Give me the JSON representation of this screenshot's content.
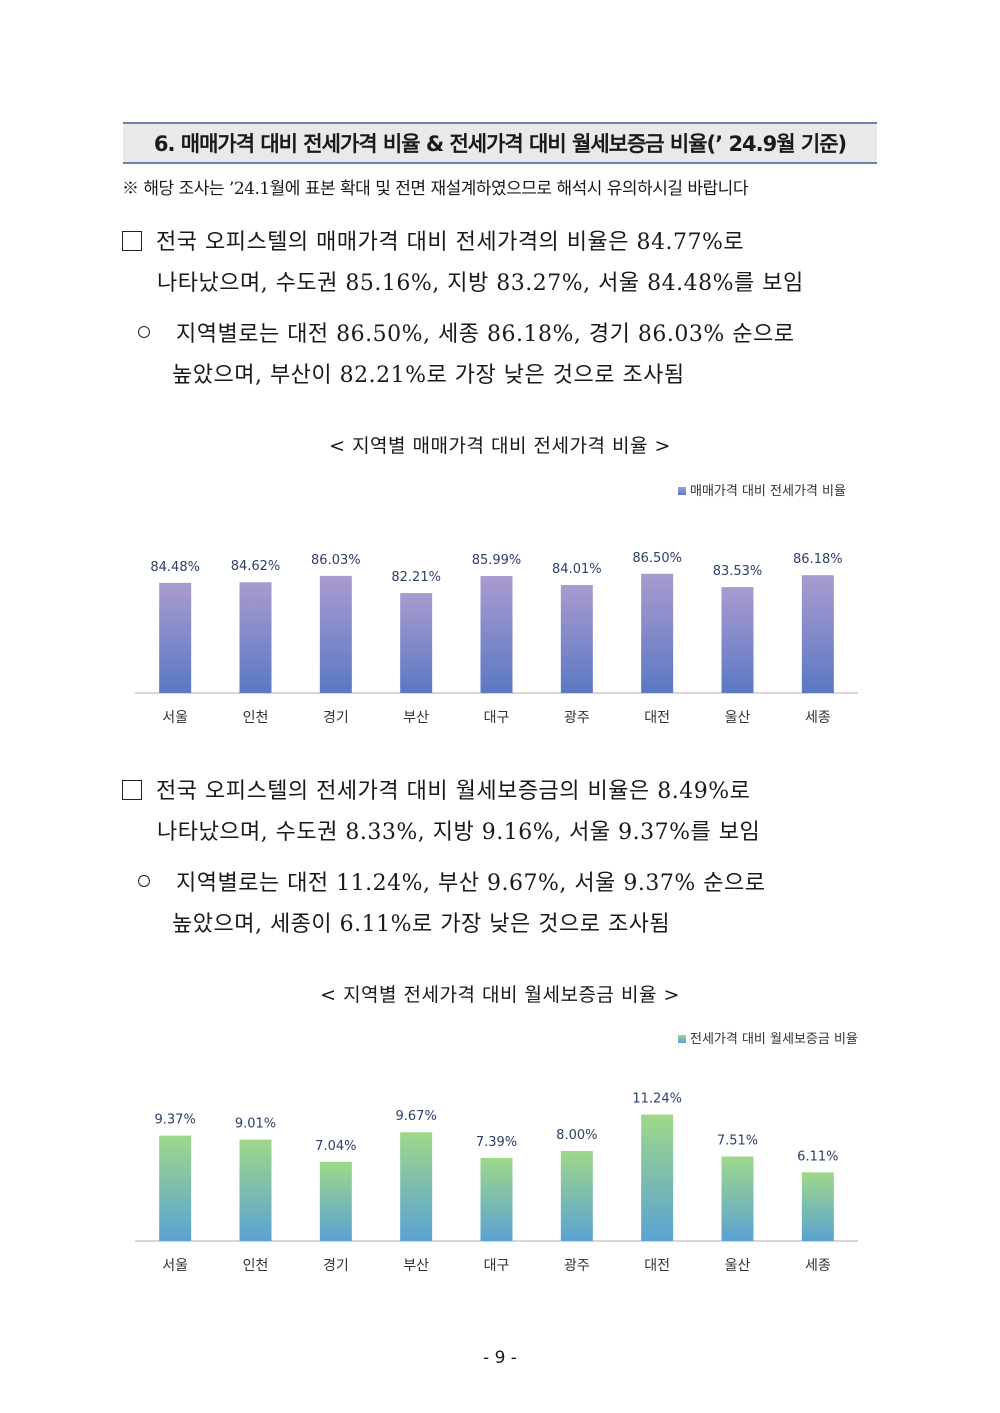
{
  "section": {
    "title": "6. 매매가격 대비 전세가격 비율 & 전세가격 대비 월세보증금 비율(’ 24.9월 기준)",
    "note": "※ 해당 조사는 ’24.1월에 표본 확대 및 전면 재설계하였으므로 해석시 유의하시길 바랍니다"
  },
  "paragraphs": {
    "p1_line1": "전국 오피스텔의 매매가격 대비 전세가격의 비율은 84.77%로",
    "p1_line2": "나타났으며, 수도권 85.16%, 지방 83.27%, 서울 84.48%를 보임",
    "p1_sub_line1": "지역별로는 대전 86.50%, 세종 86.18%, 경기 86.03% 순으로",
    "p1_sub_line2": "높았으며, 부산이 82.21%로 가장 낮은 것으로 조사됨",
    "p2_line1": "전국 오피스텔의 전세가격 대비 월세보증금의 비율은 8.49%로",
    "p2_line2": "나타났으며, 수도권 8.33%, 지방 9.16%, 서울 9.37%를 보임",
    "p2_sub_line1": "지역별로는 대전 11.24%, 부산 9.67%, 서울 9.37% 순으로",
    "p2_sub_line2": "높았으며, 세종이 6.11%로 가장 낮은 것으로 조사됨"
  },
  "captions": {
    "chart1": "< 지역별 매매가격 대비 전세가격 비율 >",
    "chart2": "< 지역별 전세가격 대비 월세보증금 비율 >"
  },
  "page_number": "- 9 -",
  "colors": {
    "bar1_top": "#a99bcf",
    "bar1_bottom": "#5b78c4",
    "bar2_top": "#9fd889",
    "bar2_bottom": "#5aa2d3",
    "label": "#2f3f6b",
    "title_border": "#6f7fb0"
  },
  "chart_data": [
    {
      "type": "bar",
      "title": "< 지역별 매매가격 대비 전세가격 비율 >",
      "legend": "매매가격 대비 전세가격 비율",
      "legend_position": "top-right",
      "categories": [
        "서울",
        "인천",
        "경기",
        "부산",
        "대구",
        "광주",
        "대전",
        "울산",
        "세종"
      ],
      "values": [
        84.48,
        84.62,
        86.03,
        82.21,
        85.99,
        84.01,
        86.5,
        83.53,
        86.18
      ],
      "labels": [
        "84.48%",
        "84.62%",
        "86.03%",
        "82.21%",
        "85.99%",
        "84.01%",
        "86.50%",
        "83.53%",
        "86.18%"
      ],
      "ylim": [
        60,
        90
      ],
      "grid": false
    },
    {
      "type": "bar",
      "title": "< 지역별 전세가격 대비 월세보증금 비율 >",
      "legend": "전세가격 대비 월세보증금 비율",
      "legend_position": "top-right",
      "categories": [
        "서울",
        "인천",
        "경기",
        "부산",
        "대구",
        "광주",
        "대전",
        "울산",
        "세종"
      ],
      "values": [
        9.37,
        9.01,
        7.04,
        9.67,
        7.39,
        8.0,
        11.24,
        7.51,
        6.11
      ],
      "labels": [
        "9.37%",
        "9.01%",
        "7.04%",
        "9.67%",
        "7.39%",
        "8.00%",
        "11.24%",
        "7.51%",
        "6.11%"
      ],
      "ylim": [
        0,
        12
      ],
      "grid": false
    }
  ]
}
